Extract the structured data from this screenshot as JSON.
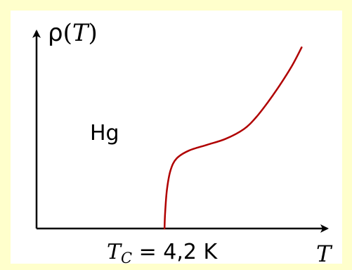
{
  "chart_data": {
    "type": "line",
    "ylabel_symbol": "ρ",
    "ylabel_open": "(",
    "ylabel_var": "T",
    "ylabel_close": ")",
    "xlabel": "T",
    "annotation": "Hg",
    "tc_label_var": "T",
    "tc_label_sub": "C",
    "tc_label_value": " = 4,2 K",
    "tc": 4.2,
    "xlim": [
      0,
      9.5
    ],
    "ylim": [
      0,
      1
    ],
    "series": [
      {
        "color": "#b00000",
        "points": [
          [
            4.2,
            0.0
          ],
          [
            4.22,
            0.08
          ],
          [
            4.28,
            0.2
          ],
          [
            4.4,
            0.3
          ],
          [
            4.6,
            0.36
          ],
          [
            5.0,
            0.4
          ],
          [
            5.6,
            0.43
          ],
          [
            6.2,
            0.46
          ],
          [
            6.8,
            0.51
          ],
          [
            7.2,
            0.57
          ],
          [
            7.6,
            0.65
          ],
          [
            8.0,
            0.74
          ],
          [
            8.4,
            0.84
          ],
          [
            8.7,
            0.93
          ]
        ]
      }
    ]
  }
}
